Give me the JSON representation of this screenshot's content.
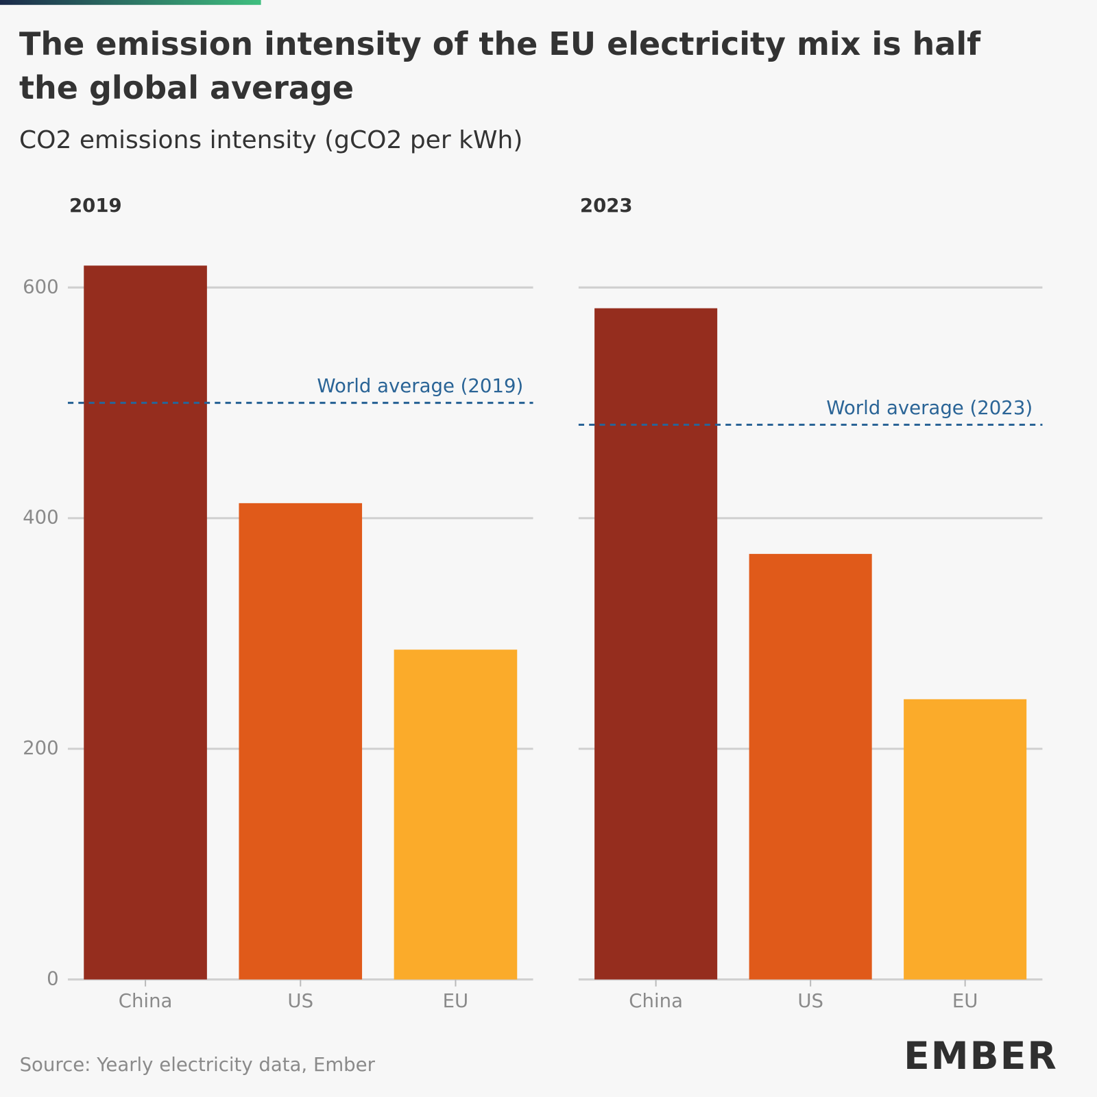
{
  "title": "The emission intensity of the EU electricity mix is half the global average",
  "subtitle": "CO2 emissions intensity (gCO2 per kWh)",
  "source": "Source: Yearly electricity data, Ember",
  "logo": "EMBER",
  "chart_data": [
    {
      "type": "bar",
      "title": "2019",
      "categories": [
        "China",
        "US",
        "EU"
      ],
      "values": [
        619,
        413,
        286
      ],
      "colors": [
        "#952d1e",
        "#e05a1a",
        "#fbab2a"
      ],
      "ylim": [
        0,
        640
      ],
      "yticks": [
        0,
        200,
        400,
        600
      ],
      "grid": true,
      "reference": {
        "label": "World average (2019)",
        "value": 500,
        "color": "#2a6496"
      }
    },
    {
      "type": "bar",
      "title": "2023",
      "categories": [
        "China",
        "US",
        "EU"
      ],
      "values": [
        582,
        369,
        243
      ],
      "colors": [
        "#952d1e",
        "#e05a1a",
        "#fbab2a"
      ],
      "ylim": [
        0,
        640
      ],
      "grid": true,
      "reference": {
        "label": "World average (2023)",
        "value": 481,
        "color": "#2a6496"
      }
    }
  ]
}
